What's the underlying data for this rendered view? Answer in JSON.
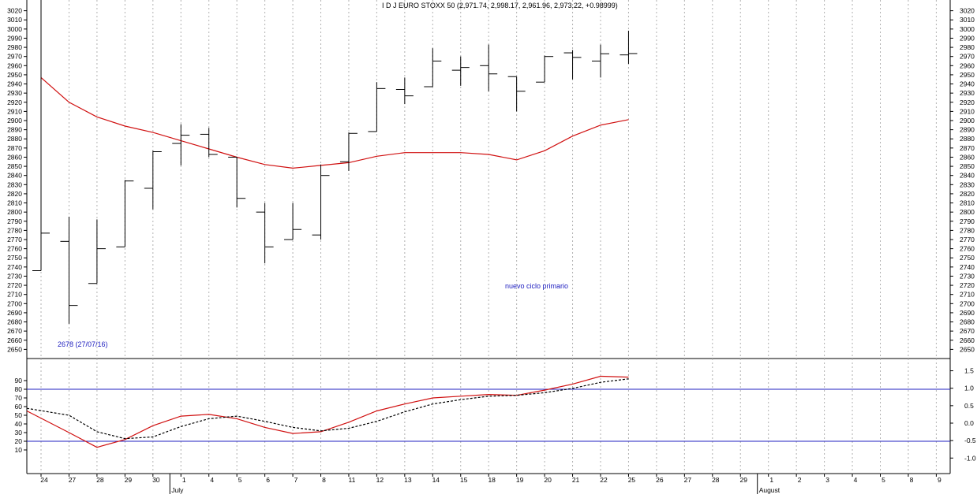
{
  "chart_data": [
    {
      "type": "ohlc",
      "title": "I D J EURO STOXX 50 (2,971.74, 2,998.17, 2,961.96, 2,973.22, +0.98999)",
      "annotations": [
        "2678 (27/07/16)",
        "nuevo ciclo primario"
      ],
      "y_ticks": [
        2650,
        2660,
        2670,
        2680,
        2690,
        2700,
        2710,
        2720,
        2730,
        2740,
        2750,
        2760,
        2770,
        2780,
        2790,
        2800,
        2810,
        2820,
        2830,
        2840,
        2850,
        2860,
        2870,
        2880,
        2890,
        2900,
        2910,
        2920,
        2930,
        2940,
        2950,
        2960,
        2970,
        2980,
        2990,
        3000,
        3010,
        3020
      ],
      "ylim": [
        2640,
        3030
      ],
      "x_ticks": [
        "24",
        "27",
        "28",
        "29",
        "30",
        "1",
        "4",
        "5",
        "6",
        "7",
        "8",
        "11",
        "12",
        "13",
        "14",
        "15",
        "18",
        "19",
        "20",
        "21",
        "22",
        "25",
        "26",
        "27",
        "28",
        "29",
        "1",
        "2",
        "3",
        "4",
        "5",
        "8",
        "9"
      ],
      "month_labels": [
        {
          "at": 5,
          "label": "July"
        },
        {
          "at": 26,
          "label": "August"
        }
      ],
      "grid": true,
      "ohlc": [
        {
          "o": 2736,
          "h": 3035,
          "l": 2736,
          "c": 2777
        },
        {
          "o": 2768,
          "h": 2795,
          "l": 2678,
          "c": 2698
        },
        {
          "o": 2722,
          "h": 2792,
          "l": 2722,
          "c": 2760
        },
        {
          "o": 2762,
          "h": 2835,
          "l": 2762,
          "c": 2834
        },
        {
          "o": 2826,
          "h": 2867,
          "l": 2803,
          "c": 2866
        },
        {
          "o": 2875,
          "h": 2896,
          "l": 2851,
          "c": 2884
        },
        {
          "o": 2885,
          "h": 2892,
          "l": 2860,
          "c": 2863
        },
        {
          "o": 2860,
          "h": 2860,
          "l": 2805,
          "c": 2815
        },
        {
          "o": 2800,
          "h": 2810,
          "l": 2744,
          "c": 2762
        },
        {
          "o": 2770,
          "h": 2810,
          "l": 2770,
          "c": 2781
        },
        {
          "o": 2775,
          "h": 2852,
          "l": 2770,
          "c": 2840
        },
        {
          "o": 2855,
          "h": 2887,
          "l": 2845,
          "c": 2886
        },
        {
          "o": 2888,
          "h": 2942,
          "l": 2888,
          "c": 2935
        },
        {
          "o": 2934,
          "h": 2947,
          "l": 2918,
          "c": 2927
        },
        {
          "o": 2937,
          "h": 2979,
          "l": 2937,
          "c": 2965
        },
        {
          "o": 2955,
          "h": 2970,
          "l": 2938,
          "c": 2958
        },
        {
          "o": 2960,
          "h": 2983,
          "l": 2932,
          "c": 2951
        },
        {
          "o": 2948,
          "h": 2948,
          "l": 2910,
          "c": 2932
        },
        {
          "o": 2942,
          "h": 2971,
          "l": 2942,
          "c": 2970
        },
        {
          "o": 2974,
          "h": 2977,
          "l": 2945,
          "c": 2969
        },
        {
          "o": 2965,
          "h": 2983,
          "l": 2947,
          "c": 2973
        },
        {
          "o": 2971.74,
          "h": 2998.17,
          "l": 2961.96,
          "c": 2973.22
        }
      ],
      "moving_average": [
        2947,
        2920,
        2904,
        2894,
        2887,
        2878,
        2869,
        2860,
        2852,
        2848,
        2851,
        2854,
        2861,
        2865,
        2865,
        2865,
        2863,
        2857,
        2867,
        2883,
        2895,
        2901
      ],
      "colors": {
        "ohlc": "#000000",
        "moving_average": "#d01010"
      }
    },
    {
      "type": "line",
      "left_axis_ticks": [
        "10",
        "20",
        "30",
        "40",
        "50",
        "60",
        "70",
        "80",
        "90"
      ],
      "right_axis_ticks": [
        "-1.0",
        "-0.5",
        "0.0",
        "0.5",
        "1.0",
        "1.5"
      ],
      "left_range": [
        5,
        97
      ],
      "reference_lines": [
        20,
        80
      ],
      "series": [
        {
          "style": "solid",
          "color": "#d01010",
          "values": [
            55,
            30,
            13,
            22,
            38,
            49,
            51,
            46,
            36,
            29,
            31,
            42,
            55,
            63,
            70,
            72,
            74,
            73,
            79,
            86,
            95,
            94
          ]
        },
        {
          "style": "dashed",
          "color": "#000000",
          "values": [
            58,
            50,
            31,
            23,
            25,
            37,
            46,
            49,
            43,
            36,
            32,
            35,
            43,
            54,
            63,
            68,
            72,
            73,
            76,
            81,
            88,
            92
          ]
        }
      ],
      "colors": {
        "reference": "#2020c0"
      }
    }
  ]
}
